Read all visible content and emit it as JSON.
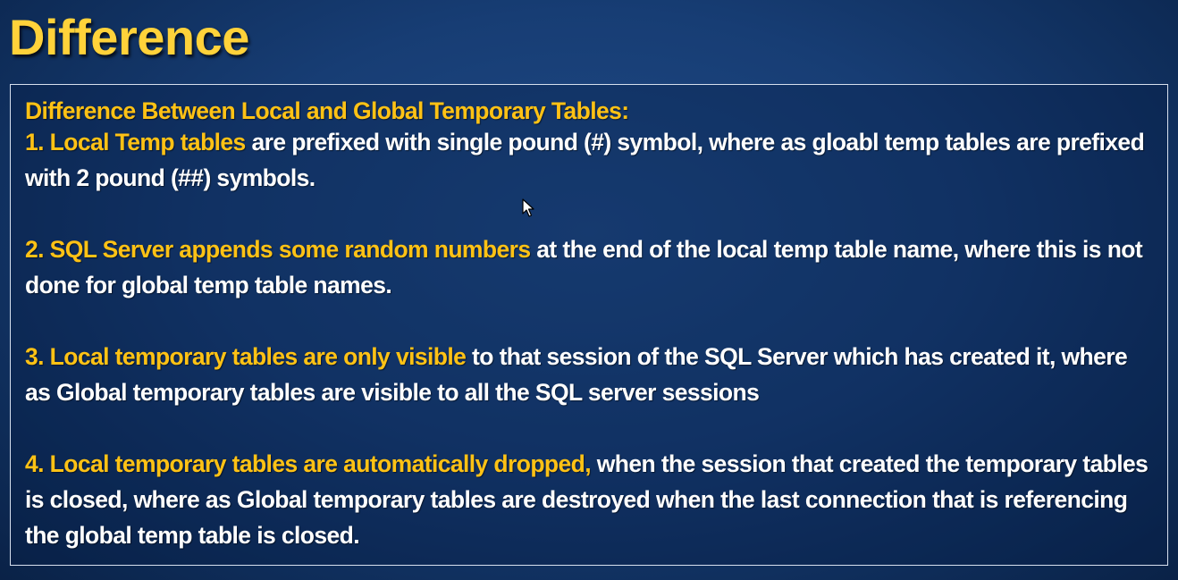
{
  "slide": {
    "title": "Difference",
    "heading": "Difference Between Local and Global Temporary Tables:",
    "points": [
      {
        "highlight": "1. Local Temp tables",
        "text": " are prefixed with single pound (#) symbol, where as gloabl temp tables are prefixed with 2 pound (##) symbols."
      },
      {
        "highlight": "2. SQL Server appends some random numbers",
        "text": " at the end of the local temp table name, where this is not done for global temp table names."
      },
      {
        "highlight": "3. Local temporary tables are only visible",
        "text": " to that session of the SQL Server which has created it, where as Global temporary tables are visible to all the SQL server sessions"
      },
      {
        "highlight": "4. Local temporary tables are automatically dropped,",
        "text": " when the session that created the temporary tables is closed, where as Global temporary tables are destroyed when the last connection that is referencing the global temp table is closed."
      }
    ]
  },
  "colors": {
    "background": "#173d74",
    "title": "#ffd23a",
    "highlight": "#ffc215",
    "body_text": "#ffffff",
    "border": "#d7e0ee"
  },
  "icons": {
    "cursor": "mouse-pointer-icon"
  }
}
